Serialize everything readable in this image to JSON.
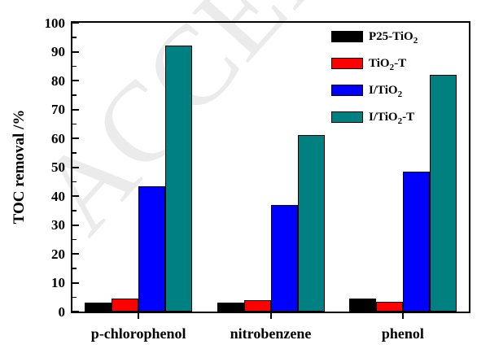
{
  "watermark": {
    "text": "ACCEPTED",
    "color": "#ebebeb"
  },
  "chart_data": {
    "type": "bar",
    "title": "",
    "xlabel": "",
    "ylabel": "TOC removal /%",
    "ylim": [
      0,
      100
    ],
    "ytick_major_step": 10,
    "ytick_minor_step": 5,
    "grid": false,
    "legend_position": "top-right-inside",
    "axis_color": "#000000",
    "categories": [
      "p-chlorophenol",
      "nitrobenzene",
      "phenol"
    ],
    "series": [
      {
        "name": "P25-TiO2",
        "label_parts": [
          {
            "t": "P25-TiO"
          },
          {
            "t": "2",
            "sub": true
          }
        ],
        "color": "#000000",
        "values": [
          3,
          3,
          4.5
        ]
      },
      {
        "name": "TiO2-T",
        "label_parts": [
          {
            "t": "TiO"
          },
          {
            "t": "2",
            "sub": true
          },
          {
            "t": "-T"
          }
        ],
        "color": "#ff0000",
        "values": [
          4.5,
          4,
          3.5
        ]
      },
      {
        "name": "I/TiO2",
        "label_parts": [
          {
            "t": "I/TiO"
          },
          {
            "t": "2",
            "sub": true
          }
        ],
        "color": "#0000ff",
        "values": [
          43.5,
          37,
          48.5
        ]
      },
      {
        "name": "I/TiO2-T",
        "label_parts": [
          {
            "t": "I/TiO"
          },
          {
            "t": "2",
            "sub": true
          },
          {
            "t": "-T"
          }
        ],
        "color": "#008080",
        "values": [
          92,
          61,
          82
        ]
      }
    ]
  }
}
